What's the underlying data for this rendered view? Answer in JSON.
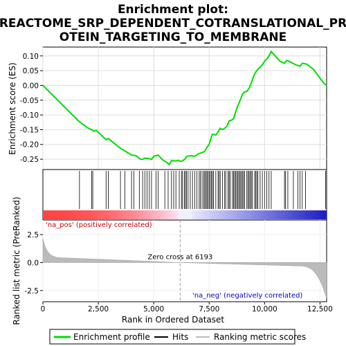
{
  "chart_data": {
    "type": "line",
    "title_lines": [
      "Enrichment plot:",
      "REACTOME_SRP_DEPENDENT_COTRANSLATIONAL_PR",
      "OTEIN_TARGETING_TO_MEMBRANE"
    ],
    "xlabel": "Rank in Ordered Dataset",
    "x_max": 12800,
    "x_ticks": [
      {
        "v": 0,
        "label": "0"
      },
      {
        "v": 2500,
        "label": "2,500"
      },
      {
        "v": 5000,
        "label": "5,000"
      },
      {
        "v": 7500,
        "label": "7,500"
      },
      {
        "v": 10000,
        "label": "10,000"
      },
      {
        "v": 12500,
        "label": "12,500"
      }
    ],
    "es_panel": {
      "ylabel": "Enrichment score (ES)",
      "ylim": [
        -0.285,
        0.13
      ],
      "y_ticks": [
        {
          "v": 0.1,
          "label": "0.10"
        },
        {
          "v": 0.05,
          "label": "0.05"
        },
        {
          "v": 0.0,
          "label": "0.00"
        },
        {
          "v": -0.05,
          "label": "-0.05"
        },
        {
          "v": -0.1,
          "label": "-0.10"
        },
        {
          "v": -0.15,
          "label": "-0.15"
        },
        {
          "v": -0.2,
          "label": "-0.20"
        },
        {
          "v": -0.25,
          "label": "-0.25"
        }
      ],
      "grid": true,
      "series_color": "#00dd00",
      "points": [
        [
          0,
          0.0
        ],
        [
          1600,
          -0.12
        ],
        [
          2000,
          -0.143
        ],
        [
          2250,
          -0.152
        ],
        [
          2300,
          -0.155
        ],
        [
          2400,
          -0.152
        ],
        [
          2850,
          -0.184
        ],
        [
          2950,
          -0.18
        ],
        [
          3500,
          -0.213
        ],
        [
          3700,
          -0.222
        ],
        [
          4000,
          -0.236
        ],
        [
          4200,
          -0.238
        ],
        [
          4400,
          -0.25
        ],
        [
          4500,
          -0.25
        ],
        [
          4600,
          -0.246
        ],
        [
          4700,
          -0.247
        ],
        [
          4900,
          -0.25
        ],
        [
          5000,
          -0.24
        ],
        [
          5200,
          -0.236
        ],
        [
          5400,
          -0.252
        ],
        [
          5600,
          -0.262
        ],
        [
          5700,
          -0.268
        ],
        [
          5800,
          -0.255
        ],
        [
          6000,
          -0.256
        ],
        [
          6100,
          -0.254
        ],
        [
          6200,
          -0.257
        ],
        [
          6300,
          -0.256
        ],
        [
          6400,
          -0.25
        ],
        [
          6500,
          -0.24
        ],
        [
          6700,
          -0.238
        ],
        [
          6800,
          -0.24
        ],
        [
          6900,
          -0.238
        ],
        [
          7000,
          -0.232
        ],
        [
          7200,
          -0.227
        ],
        [
          7300,
          -0.223
        ],
        [
          7400,
          -0.21
        ],
        [
          7500,
          -0.2
        ],
        [
          7600,
          -0.175
        ],
        [
          7650,
          -0.165
        ],
        [
          7800,
          -0.168
        ],
        [
          7900,
          -0.158
        ],
        [
          8000,
          -0.145
        ],
        [
          8100,
          -0.15
        ],
        [
          8200,
          -0.145
        ],
        [
          8300,
          -0.138
        ],
        [
          8400,
          -0.12
        ],
        [
          8500,
          -0.118
        ],
        [
          8600,
          -0.113
        ],
        [
          8700,
          -0.088
        ],
        [
          8800,
          -0.068
        ],
        [
          8900,
          -0.05
        ],
        [
          9000,
          -0.03
        ],
        [
          9100,
          -0.022
        ],
        [
          9200,
          -0.02
        ],
        [
          9300,
          -0.01
        ],
        [
          9400,
          0.008
        ],
        [
          9500,
          0.03
        ],
        [
          9600,
          0.045
        ],
        [
          9700,
          0.055
        ],
        [
          9800,
          0.062
        ],
        [
          9900,
          0.07
        ],
        [
          10000,
          0.082
        ],
        [
          10100,
          0.09
        ],
        [
          10200,
          0.1
        ],
        [
          10300,
          0.115
        ],
        [
          10500,
          0.098
        ],
        [
          10700,
          0.082
        ],
        [
          10900,
          0.075
        ],
        [
          11000,
          0.085
        ],
        [
          11200,
          0.078
        ],
        [
          11400,
          0.07
        ],
        [
          11600,
          0.065
        ],
        [
          11700,
          0.075
        ],
        [
          11900,
          0.072
        ],
        [
          12200,
          0.055
        ],
        [
          12500,
          0.025
        ],
        [
          12700,
          0.005
        ],
        [
          12800,
          0.0
        ]
      ]
    },
    "hits": [
      1650,
      2200,
      2250,
      2850,
      2950,
      3500,
      3700,
      4000,
      4100,
      4350,
      4500,
      4600,
      4700,
      4800,
      4900,
      5100,
      5200,
      5500,
      5650,
      5800,
      5900,
      6000,
      6150,
      6250,
      6300,
      6380,
      6430,
      6480,
      6550,
      6650,
      6750,
      6850,
      6950,
      7050,
      7100,
      7180,
      7250,
      7300,
      7350,
      7400,
      7450,
      7500,
      7550,
      7600,
      7650,
      7700,
      7800,
      7900,
      7950,
      8000,
      8100,
      8200,
      8250,
      8350,
      8400,
      8450,
      8550,
      8600,
      8650,
      8700,
      8750,
      8800,
      8850,
      8900,
      8950,
      9000,
      9050,
      9100,
      9200,
      9250,
      9300,
      9350,
      9400,
      9450,
      9550,
      9600,
      9650,
      9700,
      9800,
      9900,
      10000,
      10100,
      10200,
      10300,
      10900,
      10950,
      11050,
      11300,
      11500,
      11600,
      11700,
      11850,
      12750
    ],
    "ranked_panel": {
      "ylabel": "Ranked list metric (PreRanked)",
      "ylim": [
        -3.5,
        3.8
      ],
      "y_ticks": [
        {
          "v": 2.5,
          "label": "2.5"
        },
        {
          "v": 0.0,
          "label": "0.0"
        },
        {
          "v": -2.5,
          "label": "-2.5"
        }
      ],
      "zero_cross": 6193,
      "zero_cross_label": "Zero cross at 6193",
      "pos_label": "'na_pos' (positively correlated)",
      "neg_label": "'na_neg' (negatively correlated)",
      "pos_label_color": "#cc0000",
      "neg_label_color": "#0000cc",
      "fill_color": "#bbbbbb"
    },
    "legend": [
      {
        "label": "Enrichment profile",
        "color": "#00dd00"
      },
      {
        "label": "Hits",
        "color": "#000000"
      },
      {
        "label": "Ranking metric scores",
        "color": "#bbbbbb"
      }
    ]
  }
}
